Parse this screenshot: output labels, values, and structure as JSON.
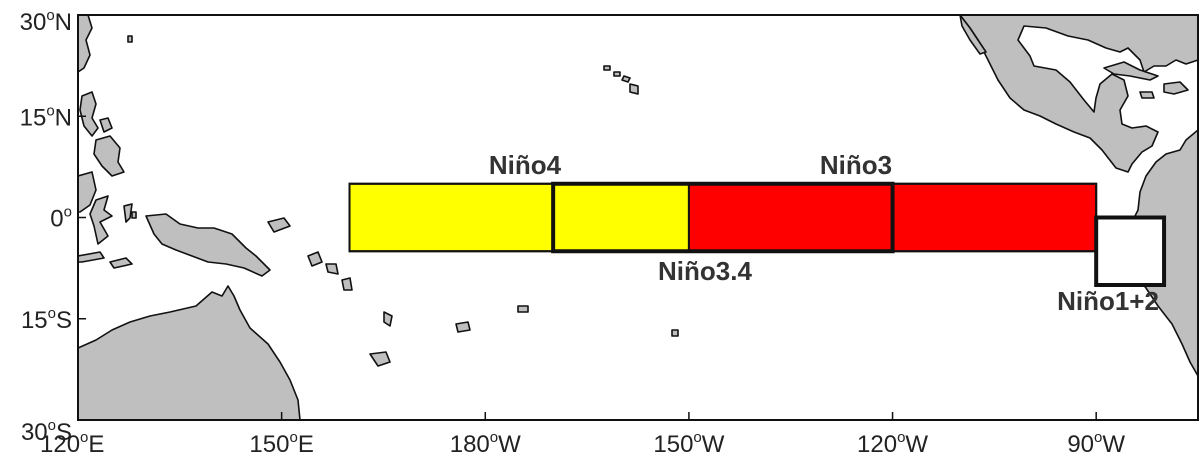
{
  "map": {
    "extent": {
      "lon_min": 120,
      "lon_max": 285,
      "lat_min": -30,
      "lat_max": 30
    },
    "colors": {
      "land": "#bfbfbf",
      "coast": "#111111",
      "nino4_fill": "#ffff00",
      "nino3_fill": "#ff0000",
      "box_outline": "#111111"
    },
    "y_ticks": [
      {
        "lat": 30,
        "value": "30",
        "hemi": "N"
      },
      {
        "lat": 15,
        "value": "15",
        "hemi": "N"
      },
      {
        "lat": 0,
        "value": "0",
        "hemi": ""
      },
      {
        "lat": -15,
        "value": "15",
        "hemi": "S"
      },
      {
        "lat": -30,
        "value": "30",
        "hemi": "S"
      }
    ],
    "x_ticks": [
      {
        "lon": 120,
        "value": "120",
        "hemi": "E"
      },
      {
        "lon": 150,
        "value": "150",
        "hemi": "E"
      },
      {
        "lon": 180,
        "value": "180",
        "hemi": "W"
      },
      {
        "lon": 210,
        "value": "150",
        "hemi": "W"
      },
      {
        "lon": 240,
        "value": "120",
        "hemi": "W"
      },
      {
        "lon": 270,
        "value": "90",
        "hemi": "W"
      }
    ],
    "regions": [
      {
        "name": "Niño4",
        "lon": [
          160,
          210
        ],
        "lat": [
          -5,
          5
        ],
        "fill": "#ffff00",
        "outline": false
      },
      {
        "name": "Niño3",
        "lon": [
          210,
          270
        ],
        "lat": [
          -5,
          5
        ],
        "fill": "#ff0000",
        "outline": false
      },
      {
        "name": "Niño3.4",
        "lon": [
          190,
          240
        ],
        "lat": [
          -5,
          5
        ],
        "fill": "none",
        "outline": true
      },
      {
        "name": "Niño1+2",
        "lon": [
          270,
          280
        ],
        "lat": [
          -10,
          0
        ],
        "fill": "none",
        "outline": true
      }
    ],
    "labels": {
      "nino4": "Niño4",
      "nino3": "Niño3",
      "nino34": "Niño3.4",
      "nino12": "Niño1+2"
    }
  }
}
